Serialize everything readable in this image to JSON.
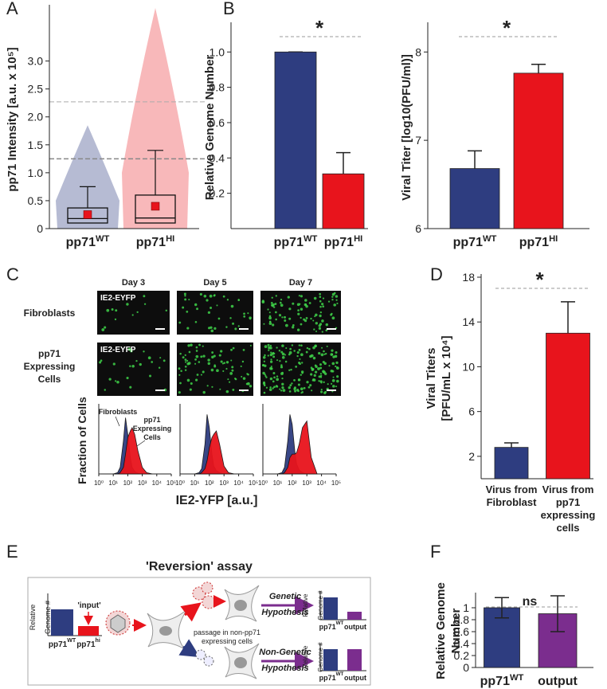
{
  "chart_data": [
    {
      "panel": "A",
      "type": "box",
      "ylabel": "pp71 Intensity [a.u. x 10⁵]",
      "categories": [
        {
          "text": "pp71",
          "sup": "WT"
        },
        {
          "text": "pp71",
          "sup": "HI"
        }
      ],
      "label_colors": [
        "#2e3d80",
        "#e8141c"
      ],
      "colors": [
        "#2e3d80",
        "#e8141c"
      ],
      "boxes": [
        {
          "q1": 0.1,
          "median": 0.18,
          "q3": 0.37,
          "whisker_high": 0.75,
          "mean": 0.25
        },
        {
          "q1": 0.1,
          "median": 0.19,
          "q3": 0.6,
          "whisker_high": 1.4,
          "mean": 0.4
        }
      ],
      "ylim": [
        0,
        3.95
      ],
      "yticks": [
        0,
        0.5,
        {
          "value": 1,
          "label": "1.0"
        },
        1.5,
        {
          "value": 2,
          "label": "2.0"
        },
        2.5,
        {
          "value": 3,
          "label": "3.0"
        }
      ],
      "reference_lines": [
        1.25,
        2.27
      ]
    },
    {
      "panel": "B",
      "type": "bar",
      "ylabel": "Relative Genome Number",
      "categories": [
        {
          "text": "pp71",
          "sup": "WT"
        },
        {
          "text": "pp71",
          "sup": "HI"
        }
      ],
      "label_colors": [
        "#2e3d80",
        "#e8141c"
      ],
      "colors": [
        "#2e3d80",
        "#e8141c"
      ],
      "values": [
        1.0,
        0.31
      ],
      "errors": [
        0,
        0.12
      ],
      "ylim": [
        0,
        1.15
      ],
      "yticks": [
        0.2,
        0.4,
        0.6,
        0.8,
        {
          "value": 1,
          "label": "1.0"
        }
      ],
      "significance": "*"
    },
    {
      "type": "bar",
      "ylabel": "Viral Titer [log10(PFU/ml)]",
      "categories": [
        {
          "text": "pp71",
          "sup": "WT"
        },
        {
          "text": "pp71",
          "sup": "HI"
        }
      ],
      "label_colors": [
        "#2e3d80",
        "#e8141c"
      ],
      "colors": [
        "#2e3d80",
        "#e8141c"
      ],
      "values": [
        6.68,
        7.76
      ],
      "errors": [
        0.2,
        0.1
      ],
      "ylim": [
        6,
        8.3
      ],
      "yticks": [
        6,
        7,
        8
      ],
      "significance": "*"
    },
    {
      "panel": "C",
      "type": "area",
      "image_label": "IE2-EYFP",
      "rows": [
        [
          "Fibroblasts"
        ],
        [
          "pp71",
          "Expressing",
          "Cells"
        ]
      ],
      "xlabel": "IE2-YFP [a.u.]",
      "ylabel": "Fraction of Cells",
      "log_x": true,
      "xlim": [
        1,
        100000
      ],
      "xticks": [
        {
          "value": 1,
          "label": "10⁰"
        },
        {
          "value": 10,
          "label": "10¹"
        },
        {
          "value": 100,
          "label": "10²"
        },
        {
          "value": 1000,
          "label": "10³"
        },
        {
          "value": 10000,
          "label": "10⁴"
        },
        {
          "value": 100000,
          "label": "10⁵"
        }
      ],
      "ylim": [
        0,
        1
      ],
      "x": [
        10,
        20,
        30,
        50,
        70,
        100,
        150,
        200,
        300,
        500,
        1000,
        2000,
        5000
      ],
      "days": [
        {
          "title": "Day 3",
          "series": [
            {
              "name": [
                "Fibroblasts"
              ],
              "color": "#2e3d80",
              "values": [
                0,
                0.02,
                0.1,
                0.5,
                0.85,
                0.6,
                0.25,
                0.1,
                0.04,
                0.01,
                0,
                0,
                0
              ]
            },
            {
              "name": [
                "pp71",
                "Expressing",
                "Cells"
              ],
              "color": "#e8141c",
              "values": [
                0,
                0,
                0.02,
                0.1,
                0.3,
                0.55,
                0.65,
                0.7,
                0.6,
                0.35,
                0.1,
                0.02,
                0
              ]
            }
          ]
        },
        {
          "title": "Day 5",
          "series": [
            {
              "color": "#2e3d80",
              "values": [
                0,
                0.02,
                0.08,
                0.45,
                0.9,
                0.7,
                0.3,
                0.12,
                0.05,
                0.02,
                0,
                0,
                0
              ]
            },
            {
              "color": "#e8141c",
              "values": [
                0,
                0,
                0.02,
                0.08,
                0.2,
                0.4,
                0.55,
                0.6,
                0.65,
                0.45,
                0.12,
                0.02,
                0
              ]
            }
          ]
        },
        {
          "title": "Day 7",
          "series": [
            {
              "color": "#2e3d80",
              "values": [
                0,
                0.02,
                0.1,
                0.5,
                0.9,
                0.75,
                0.35,
                0.15,
                0.06,
                0.02,
                0,
                0,
                0
              ]
            },
            {
              "color": "#e8141c",
              "values": [
                0,
                0,
                0.02,
                0.1,
                0.25,
                0.3,
                0.3,
                0.32,
                0.45,
                0.7,
                0.8,
                0.25,
                0
              ]
            }
          ]
        }
      ]
    },
    {
      "panel": "D",
      "type": "bar",
      "ylabel": [
        "Viral Titers",
        "[PFU/mL x 10⁴]"
      ],
      "categories": [
        [
          "Virus from",
          "Fibroblast"
        ],
        [
          "Virus from",
          "pp71",
          "expressing",
          "cells"
        ]
      ],
      "colors": [
        "#2e3d80",
        "#e8141c"
      ],
      "values": [
        2.8,
        13
      ],
      "errors": [
        0.4,
        2.8
      ],
      "ylim": [
        0,
        18
      ],
      "yticks": [
        2,
        6,
        10,
        14,
        18
      ],
      "significance": "*"
    },
    {
      "panel": "F",
      "type": "bar",
      "ylabel": [
        "Relative Genome",
        "Number"
      ],
      "categories": [
        {
          "text": "pp71",
          "sup": "WT"
        },
        {
          "text": "output"
        }
      ],
      "label_colors": [
        "#2e3d80",
        "#222222"
      ],
      "colors": [
        "#2e3d80",
        "#7b2d8e"
      ],
      "values": [
        1.0,
        0.9
      ],
      "errors": [
        0.17,
        0.3
      ],
      "errors_two_sided": true,
      "ylim": [
        0,
        1.2
      ],
      "yticks": [
        0,
        0.2,
        0.4,
        0.6,
        0.8,
        1
      ],
      "significance": "ns"
    }
  ],
  "diagram": {
    "panel": "E",
    "title": "'Reversion' assay",
    "y_label": [
      "Relative",
      "Genome #"
    ],
    "input": "'input'",
    "x_labels": [
      {
        "text": "pp71",
        "sup": "WT"
      },
      {
        "text": "pp71",
        "sup": "hi"
      }
    ],
    "passage": [
      "passage in non-pp71",
      "expressing cells"
    ],
    "genetic": [
      "Genetic",
      "Hypothesis"
    ],
    "non_genetic": [
      "Non-Genetic",
      "Hypothesis"
    ],
    "outcome_labels": [
      {
        "text": "pp71",
        "sup": "WT"
      },
      {
        "text": "output"
      }
    ]
  }
}
